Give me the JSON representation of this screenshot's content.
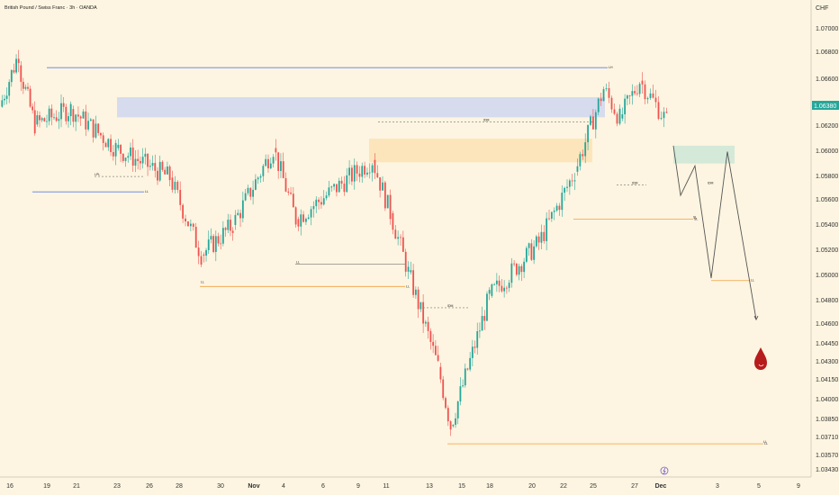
{
  "header": {
    "title": "British Pound / Swiss Franc · 3h · OANDA",
    "currency": "CHF"
  },
  "chart_data": {
    "type": "candlestick",
    "title": "British Pound / Swiss Franc · 3h · OANDA",
    "ylim": [
      1.0343,
      1.0725
    ],
    "y_ticks": [
      "1.07000",
      "1.06800",
      "1.06600",
      "1.06200",
      "1.06000",
      "1.05800",
      "1.05600",
      "1.05400",
      "1.05200",
      "1.05000",
      "1.04800",
      "1.04600",
      "1.04450",
      "1.04300",
      "1.04150",
      "1.04000",
      "1.03850",
      "1.03710",
      "1.03570",
      "1.03430"
    ],
    "x_ticks": [
      "16",
      "19",
      "21",
      "23",
      "26",
      "28",
      "30",
      "Nov",
      "4",
      "6",
      "9",
      "11",
      "13",
      "15",
      "18",
      "20",
      "22",
      "25",
      "27",
      "Dec",
      "3",
      "5",
      "9"
    ],
    "current_price": "1.06380",
    "colors": {
      "up": "#26a69a",
      "down": "#ef5350",
      "supply_zone": "#cfd6f0",
      "demand_zone": "#fde2b4",
      "target_zone": "#cde6d6",
      "blue_line": "#5b7fe8",
      "orange_line": "#f0a040",
      "path": "#555555",
      "drop": "#b71c1c"
    },
    "candle_series": [
      {
        "name": "run1",
        "from": [
          1.065,
          1.0695
        ],
        "x": [
          1,
          22
        ],
        "n": 8
      },
      {
        "name": "run2",
        "from": [
          1.0685,
          1.0635
        ],
        "x": [
          22,
          40
        ],
        "n": 7
      },
      {
        "name": "run3",
        "from": [
          1.0635,
          1.0648
        ],
        "x": [
          40,
          80
        ],
        "n": 15
      },
      {
        "name": "run4",
        "from": [
          1.0648,
          1.0615
        ],
        "x": [
          80,
          130
        ],
        "n": 18
      },
      {
        "name": "run5",
        "from": [
          1.0615,
          1.059
        ],
        "x": [
          130,
          190
        ],
        "n": 22
      },
      {
        "name": "run6",
        "from": [
          1.059,
          1.0525
        ],
        "x": [
          190,
          225
        ],
        "n": 12
      },
      {
        "name": "run7",
        "from": [
          1.0525,
          1.055
        ],
        "x": [
          225,
          260
        ],
        "n": 13
      },
      {
        "name": "run8",
        "from": [
          1.055,
          1.0615
        ],
        "x": [
          260,
          305
        ],
        "n": 16
      },
      {
        "name": "run9",
        "from": [
          1.0615,
          1.0555
        ],
        "x": [
          305,
          330
        ],
        "n": 9
      },
      {
        "name": "run10",
        "from": [
          1.0555,
          1.0605
        ],
        "x": [
          330,
          415
        ],
        "n": 30
      },
      {
        "name": "run11",
        "from": [
          1.0605,
          1.056
        ],
        "x": [
          415,
          435
        ],
        "n": 7
      },
      {
        "name": "run12",
        "from": [
          1.056,
          1.051
        ],
        "x": [
          435,
          455
        ],
        "n": 7
      },
      {
        "name": "run13",
        "from": [
          1.051,
          1.043
        ],
        "x": [
          455,
          488
        ],
        "n": 12
      },
      {
        "name": "run14",
        "from": [
          1.043,
          1.038
        ],
        "x": [
          488,
          502
        ],
        "n": 5
      },
      {
        "name": "run15",
        "from": [
          1.038,
          1.049
        ],
        "x": [
          502,
          545
        ],
        "n": 16
      },
      {
        "name": "run16",
        "from": [
          1.049,
          1.0535
        ],
        "x": [
          545,
          600
        ],
        "n": 20
      },
      {
        "name": "run17",
        "from": [
          1.0535,
          1.0595
        ],
        "x": [
          600,
          640
        ],
        "n": 14
      },
      {
        "name": "run18",
        "from": [
          1.0595,
          1.0665
        ],
        "x": [
          640,
          672
        ],
        "n": 11
      },
      {
        "name": "run19",
        "from": [
          1.0665,
          1.064
        ],
        "x": [
          672,
          690
        ],
        "n": 6
      },
      {
        "name": "run20",
        "from": [
          1.064,
          1.0672
        ],
        "x": [
          690,
          712
        ],
        "n": 8
      },
      {
        "name": "run21",
        "from": [
          1.0672,
          1.0638
        ],
        "x": [
          712,
          742
        ],
        "n": 10
      }
    ],
    "zones": [
      {
        "name": "supply",
        "y1": 1.0658,
        "y2": 1.0641,
        "x1": 130,
        "x2": 672
      },
      {
        "name": "demand",
        "y1": 1.0623,
        "y2": 1.0603,
        "x1": 410,
        "x2": 658
      },
      {
        "name": "target",
        "y1": 1.0617,
        "y2": 1.0602,
        "x1": 748,
        "x2": 816
      }
    ],
    "levels": [
      {
        "name": "blue-top",
        "y": 1.0683,
        "x1": 52,
        "x2": 675,
        "color": "blue",
        "label": "LH"
      },
      {
        "name": "blue-low",
        "y": 1.0578,
        "x1": 36,
        "x2": 160,
        "color": "blue",
        "label": "LL"
      },
      {
        "name": "orange-1",
        "y": 1.0498,
        "x1": 222,
        "x2": 450,
        "color": "orange",
        "label": "LL"
      },
      {
        "name": "orange-2",
        "y": 1.0555,
        "x1": 637,
        "x2": 770,
        "color": "orange",
        "label": "SL"
      },
      {
        "name": "orange-3",
        "y": 1.0503,
        "x1": 790,
        "x2": 833,
        "color": "orange",
        "label": "LL"
      },
      {
        "name": "orange-4",
        "y": 1.0365,
        "x1": 497,
        "x2": 848,
        "color": "orange",
        "label": "LL"
      }
    ],
    "annotations": [
      {
        "text": "IDM",
        "y": 1.0637,
        "x": 537
      },
      {
        "text": "LPL",
        "y": 1.0591,
        "x": 105
      },
      {
        "text": "IDM",
        "y": 1.0584,
        "x": 702
      },
      {
        "text": "IDM",
        "y": 1.0584,
        "x": 786
      },
      {
        "text": "IDM",
        "y": 1.048,
        "x": 497
      },
      {
        "text": "LL",
        "y": 1.05,
        "x": 223
      },
      {
        "text": "LL",
        "y": 1.0517,
        "x": 329
      },
      {
        "text": "SL",
        "y": 1.0555,
        "x": 770
      },
      {
        "text": "LL",
        "y": 1.0365,
        "x": 848
      }
    ],
    "projection": [
      [
        748,
        1.0617
      ],
      [
        756,
        1.0575
      ],
      [
        772,
        1.06
      ],
      [
        790,
        1.0505
      ],
      [
        808,
        1.0612
      ],
      [
        840,
        1.047
      ]
    ]
  }
}
